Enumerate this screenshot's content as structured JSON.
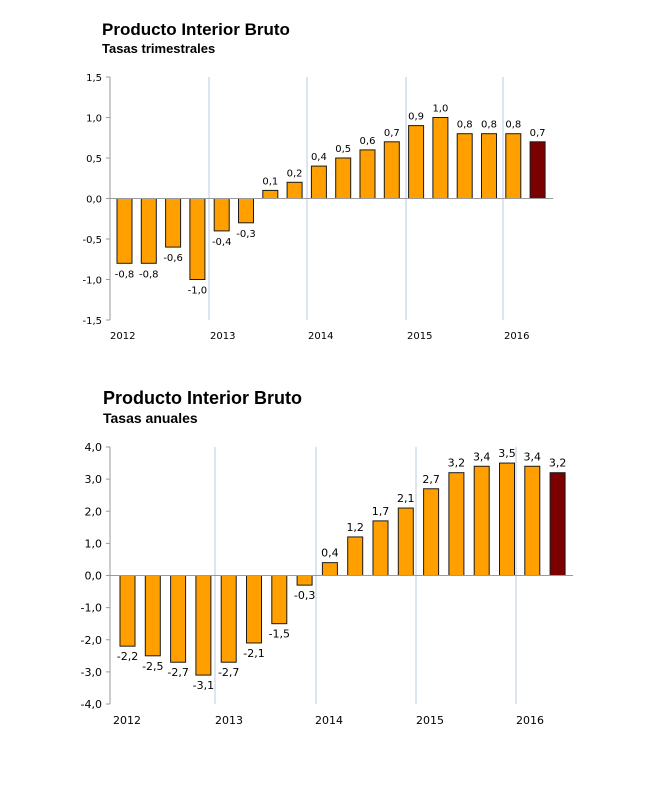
{
  "chart_data": [
    {
      "type": "bar",
      "title": "Producto Interior Bruto",
      "subtitle": "Tasas trimestrales",
      "yticks": [
        "1,5",
        "1,0",
        "0,5",
        "0,0",
        "-0,5",
        "-1,0",
        "-1,5"
      ],
      "ylim": [
        -1.5,
        1.5
      ],
      "year_labels": [
        "2012",
        "2013",
        "2014",
        "2015",
        "2016"
      ],
      "values": [
        -0.8,
        -0.8,
        -0.6,
        -1.0,
        -0.4,
        -0.3,
        0.1,
        0.2,
        0.4,
        0.5,
        0.6,
        0.7,
        0.9,
        1.0,
        0.8,
        0.8,
        0.8,
        0.7
      ],
      "labels": [
        "-0,8",
        "-0,8",
        "-0,6",
        "-1,0",
        "-0,4",
        "-0,3",
        "0,1",
        "0,2",
        "0,4",
        "0,5",
        "0,6",
        "0,7",
        "0,9",
        "1,0",
        "0,8",
        "0,8",
        "0,8",
        "0,7"
      ],
      "bar_color": "#FFA000",
      "highlight_color": "#7B0000",
      "highlight_last": true,
      "grid": false,
      "year_separators": true
    },
    {
      "type": "bar",
      "title": "Producto Interior Bruto",
      "subtitle": "Tasas anuales",
      "yticks": [
        "4,0",
        "3,0",
        "2,0",
        "1,0",
        "0,0",
        "-1,0",
        "-2,0",
        "-3,0",
        "-4,0"
      ],
      "ylim": [
        -4.0,
        4.0
      ],
      "year_labels": [
        "2012",
        "2013",
        "2014",
        "2015",
        "2016"
      ],
      "values": [
        -2.2,
        -2.5,
        -2.7,
        -3.1,
        -2.7,
        -2.1,
        -1.5,
        -0.3,
        0.4,
        1.2,
        1.7,
        2.1,
        2.7,
        3.2,
        3.4,
        3.5,
        3.4,
        3.2
      ],
      "labels": [
        "-2,2",
        "-2,5",
        "-2,7",
        "-3,1",
        "-2,7",
        "-2,1",
        "-1,5",
        "-0,3",
        "0,4",
        "1,2",
        "1,7",
        "2,1",
        "2,7",
        "3,2",
        "3,4",
        "3,5",
        "3,4",
        "3,2"
      ],
      "bar_color": "#FFA000",
      "highlight_color": "#7B0000",
      "highlight_last": true,
      "grid": false,
      "year_separators": true
    }
  ]
}
